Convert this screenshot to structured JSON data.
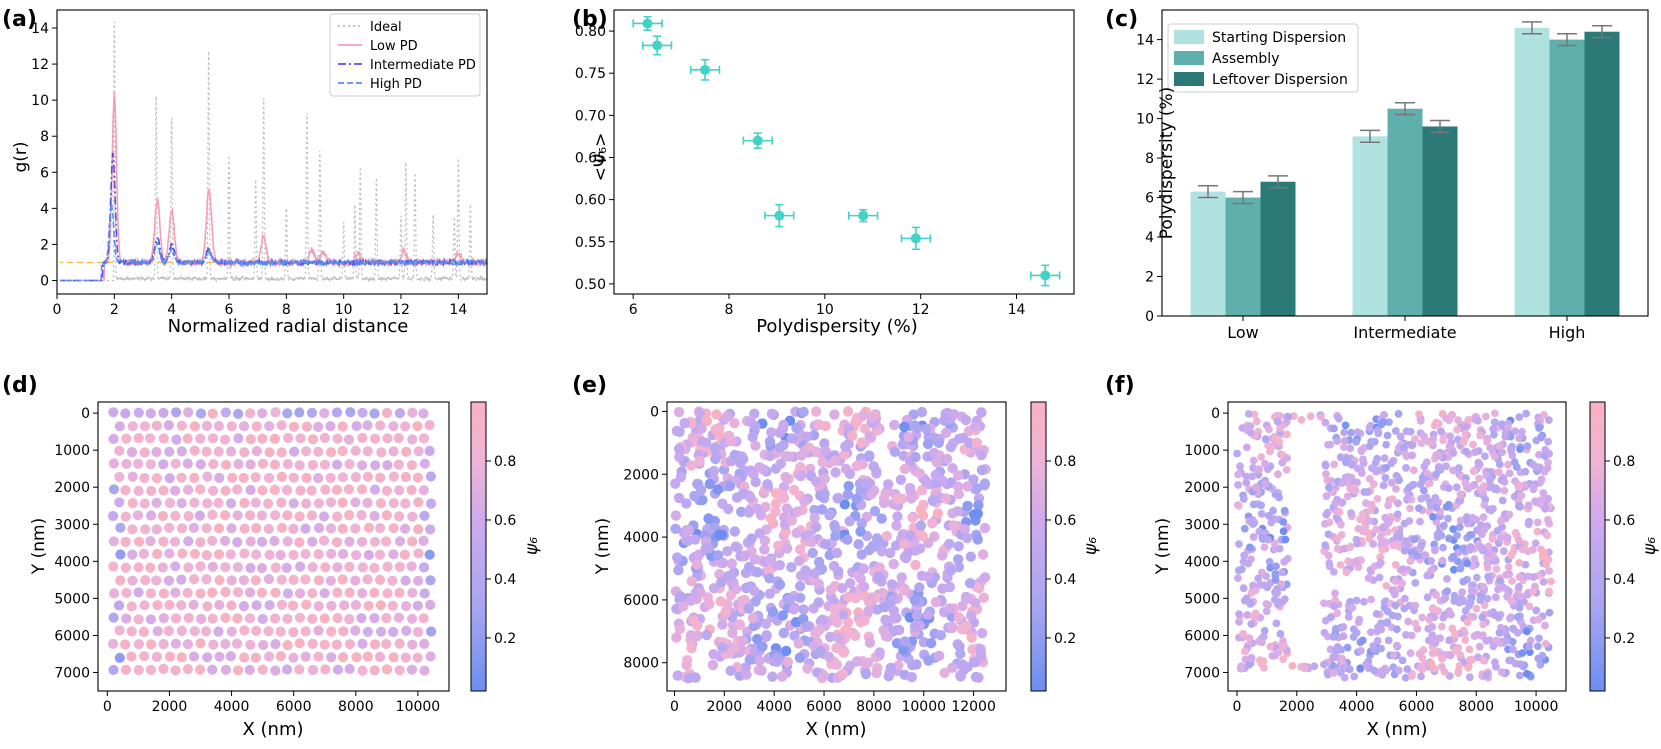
{
  "chart_data": [
    {
      "id": "a",
      "panel_label": "(a)",
      "type": "line",
      "xlabel": "Normalized radial distance",
      "ylabel": "g(r)",
      "xlim": [
        0,
        15
      ],
      "ylim": [
        -0.75,
        15
      ],
      "xticks": [
        0,
        2,
        4,
        6,
        8,
        10,
        12,
        14
      ],
      "yticks": [
        0,
        2,
        4,
        6,
        8,
        10,
        12,
        14
      ],
      "reference_line": {
        "y": 1,
        "color": "#f5b942"
      },
      "legend": {
        "position": "top-right"
      },
      "series": [
        {
          "name": "Ideal",
          "color": "#bdbdbd",
          "style": "dotted",
          "peaks": [
            [
              2,
              14.3
            ],
            [
              3.46,
              10.3
            ],
            [
              4,
              9.0
            ],
            [
              5.29,
              12.7
            ],
            [
              6,
              6.8
            ],
            [
              6.93,
              5.6
            ],
            [
              7.21,
              10.1
            ],
            [
              8,
              4.0
            ],
            [
              8.72,
              9.2
            ],
            [
              9.17,
              7.2
            ],
            [
              10,
              3.1
            ],
            [
              10.39,
              4.1
            ],
            [
              10.58,
              6.1
            ],
            [
              11.14,
              5.5
            ],
            [
              12,
              3.4
            ],
            [
              12.17,
              6.4
            ],
            [
              12.49,
              5.9
            ],
            [
              13.12,
              3.5
            ],
            [
              13.86,
              3.4
            ],
            [
              14,
              6.7
            ],
            [
              14.42,
              4.2
            ]
          ]
        },
        {
          "name": "Low PD",
          "color": "#f4a0b4",
          "style": "solid",
          "peaks": [
            [
              2.0,
              10.3
            ],
            [
              3.5,
              4.4
            ],
            [
              4.0,
              3.9
            ],
            [
              5.3,
              5.0
            ],
            [
              7.2,
              2.4
            ],
            [
              8.9,
              1.7
            ],
            [
              9.3,
              1.6
            ],
            [
              10.5,
              1.5
            ],
            [
              12.1,
              1.7
            ],
            [
              14.0,
              1.5
            ]
          ]
        },
        {
          "name": "Intermediate PD",
          "color": "#5b4fe0",
          "style": "dashdot",
          "peaks": [
            [
              1.95,
              7.0
            ],
            [
              3.5,
              2.3
            ],
            [
              4.0,
              2.0
            ],
            [
              5.3,
              1.8
            ]
          ]
        },
        {
          "name": "High PD",
          "color": "#5a8cf0",
          "style": "dashed",
          "peaks": [
            [
              1.9,
              4.2
            ],
            [
              3.5,
              2.0
            ],
            [
              4.0,
              1.7
            ],
            [
              5.3,
              1.6
            ]
          ]
        }
      ]
    },
    {
      "id": "b",
      "panel_label": "(b)",
      "type": "scatter",
      "xlabel": "Polydispersity (%)",
      "ylabel": "<Ψ₆>",
      "xlim": [
        5.6,
        15.2
      ],
      "ylim": [
        0.488,
        0.825
      ],
      "xticks": [
        6,
        8,
        10,
        12,
        14
      ],
      "yticks": [
        0.5,
        0.55,
        0.6,
        0.65,
        0.7,
        0.75,
        0.8
      ],
      "ytick_labels": [
        "0.50",
        "0.55",
        "0.60",
        "0.65",
        "0.70",
        "0.75",
        "0.80"
      ],
      "color": "#40d3c6",
      "points": [
        {
          "x": 6.3,
          "y": 0.809,
          "xerr": 0.3,
          "yerr": 0.008
        },
        {
          "x": 6.5,
          "y": 0.783,
          "xerr": 0.3,
          "yerr": 0.011
        },
        {
          "x": 7.5,
          "y": 0.754,
          "xerr": 0.3,
          "yerr": 0.012
        },
        {
          "x": 8.6,
          "y": 0.67,
          "xerr": 0.3,
          "yerr": 0.009
        },
        {
          "x": 9.05,
          "y": 0.581,
          "xerr": 0.3,
          "yerr": 0.013
        },
        {
          "x": 10.8,
          "y": 0.581,
          "xerr": 0.3,
          "yerr": 0.007
        },
        {
          "x": 11.9,
          "y": 0.554,
          "xerr": 0.3,
          "yerr": 0.013
        },
        {
          "x": 14.6,
          "y": 0.51,
          "xerr": 0.3,
          "yerr": 0.012
        }
      ]
    },
    {
      "id": "c",
      "panel_label": "(c)",
      "type": "bar",
      "ylabel": "Polydispersity (%)",
      "ylim": [
        0,
        15.5
      ],
      "yticks": [
        0,
        2,
        4,
        6,
        8,
        10,
        12,
        14
      ],
      "categories": [
        "Low",
        "Intermediate",
        "High"
      ],
      "legend": {
        "position": "top-left"
      },
      "series": [
        {
          "name": "Starting Dispersion",
          "color": "#b0e3e0",
          "values": [
            6.3,
            9.1,
            14.6
          ],
          "errors": [
            0.3,
            0.3,
            0.3
          ]
        },
        {
          "name": "Assembly",
          "color": "#5fb0ad",
          "values": [
            6.0,
            10.5,
            14.0
          ],
          "errors": [
            0.3,
            0.3,
            0.3
          ]
        },
        {
          "name": "Leftover Dispersion",
          "color": "#2b7a78",
          "values": [
            6.8,
            9.6,
            14.4
          ],
          "errors": [
            0.3,
            0.3,
            0.3
          ]
        }
      ]
    },
    {
      "id": "d",
      "panel_label": "(d)",
      "type": "scatter",
      "xlabel": "X (nm)",
      "ylabel": "Y (nm)",
      "colorbar_label": "ψ₆",
      "colorbar_ticks": [
        0.2,
        0.4,
        0.6,
        0.8
      ],
      "xlim": [
        -300,
        11000
      ],
      "ylim": [
        7500,
        -300
      ],
      "xticks": [
        0,
        2000,
        4000,
        6000,
        8000,
        10000
      ],
      "yticks": [
        0,
        1000,
        2000,
        3000,
        4000,
        5000,
        6000,
        7000
      ],
      "layout": "hexagonal",
      "seed": 11,
      "particle_diameter_nm": 330
    },
    {
      "id": "e",
      "panel_label": "(e)",
      "type": "scatter",
      "xlabel": "X (nm)",
      "ylabel": "Y (nm)",
      "colorbar_label": "ψ₆",
      "colorbar_ticks": [
        0.2,
        0.4,
        0.6,
        0.8
      ],
      "xlim": [
        -300,
        13300
      ],
      "ylim": [
        8900,
        -300
      ],
      "xticks": [
        0,
        2000,
        4000,
        6000,
        8000,
        10000,
        12000
      ],
      "yticks": [
        0,
        2000,
        4000,
        6000,
        8000
      ],
      "layout": "random",
      "seed": 23,
      "particle_diameter_nm": 420
    },
    {
      "id": "f",
      "panel_label": "(f)",
      "type": "scatter",
      "xlabel": "X (nm)",
      "ylabel": "Y (nm)",
      "colorbar_label": "ψ₆",
      "colorbar_ticks": [
        0.2,
        0.4,
        0.6,
        0.8
      ],
      "xlim": [
        -300,
        11000
      ],
      "ylim": [
        7500,
        -300
      ],
      "xticks": [
        0,
        2000,
        4000,
        6000,
        8000,
        10000
      ],
      "yticks": [
        0,
        1000,
        2000,
        3000,
        4000,
        5000,
        6000,
        7000
      ],
      "layout": "random_with_gap",
      "seed": 37,
      "particle_diameter_nm": 260
    }
  ],
  "colormap": [
    "#6d8ef0",
    "#a9a6f1",
    "#c9a9f0",
    "#f0b3d6",
    "#f8b2bf"
  ]
}
